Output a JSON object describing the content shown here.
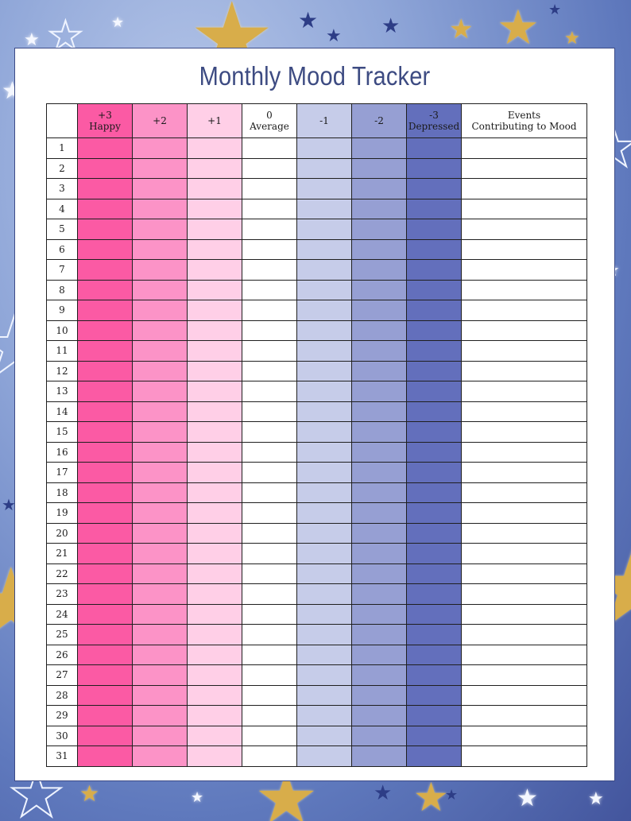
{
  "title": "Monthly Mood Tracker",
  "columns": [
    {
      "line1": "+3",
      "line2": "Happy",
      "color": "#fb5aa4"
    },
    {
      "line1": "+2",
      "line2": "",
      "color": "#fc93c7"
    },
    {
      "line1": "+1",
      "line2": "",
      "color": "#ffcfe7"
    },
    {
      "line1": "0",
      "line2": "Average",
      "color": "#ffffff"
    },
    {
      "line1": "-1",
      "line2": "",
      "color": "#c6cce9"
    },
    {
      "line1": "-2",
      "line2": "",
      "color": "#969fd3"
    },
    {
      "line1": "-3",
      "line2": "Depressed",
      "color": "#636fbc"
    },
    {
      "line1": "Events",
      "line2": "Contributing to Mood",
      "color": "#ffffff"
    }
  ],
  "days": [
    "1",
    "2",
    "3",
    "4",
    "5",
    "6",
    "7",
    "8",
    "9",
    "10",
    "11",
    "12",
    "13",
    "14",
    "15",
    "16",
    "17",
    "18",
    "19",
    "20",
    "21",
    "22",
    "23",
    "24",
    "25",
    "26",
    "27",
    "28",
    "29",
    "30",
    "31"
  ]
}
